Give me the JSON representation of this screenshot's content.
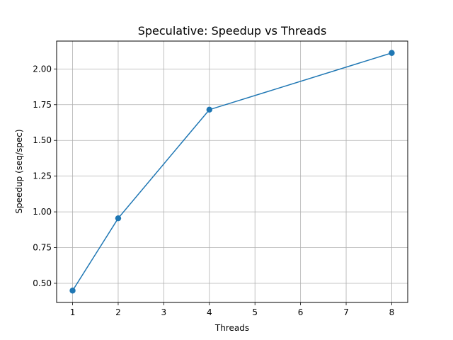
{
  "chart_data": {
    "type": "line",
    "title": "Speculative: Speedup vs Threads",
    "xlabel": "Threads",
    "ylabel": "Speedup (seq/spec)",
    "xlim": [
      0.65,
      8.35
    ],
    "ylim": [
      0.366,
      2.195
    ],
    "xticks": [
      1,
      2,
      3,
      4,
      5,
      6,
      7,
      8
    ],
    "yticks": [
      0.5,
      0.75,
      1.0,
      1.25,
      1.5,
      1.75,
      2.0
    ],
    "ytick_labels": [
      "0.50",
      "0.75",
      "1.00",
      "1.25",
      "1.50",
      "1.75",
      "2.00"
    ],
    "grid": true,
    "series": [
      {
        "color": "#1f77b4",
        "marker": "circle",
        "x": [
          1,
          2,
          4,
          8
        ],
        "y": [
          0.449,
          0.955,
          1.715,
          2.112
        ]
      }
    ]
  }
}
